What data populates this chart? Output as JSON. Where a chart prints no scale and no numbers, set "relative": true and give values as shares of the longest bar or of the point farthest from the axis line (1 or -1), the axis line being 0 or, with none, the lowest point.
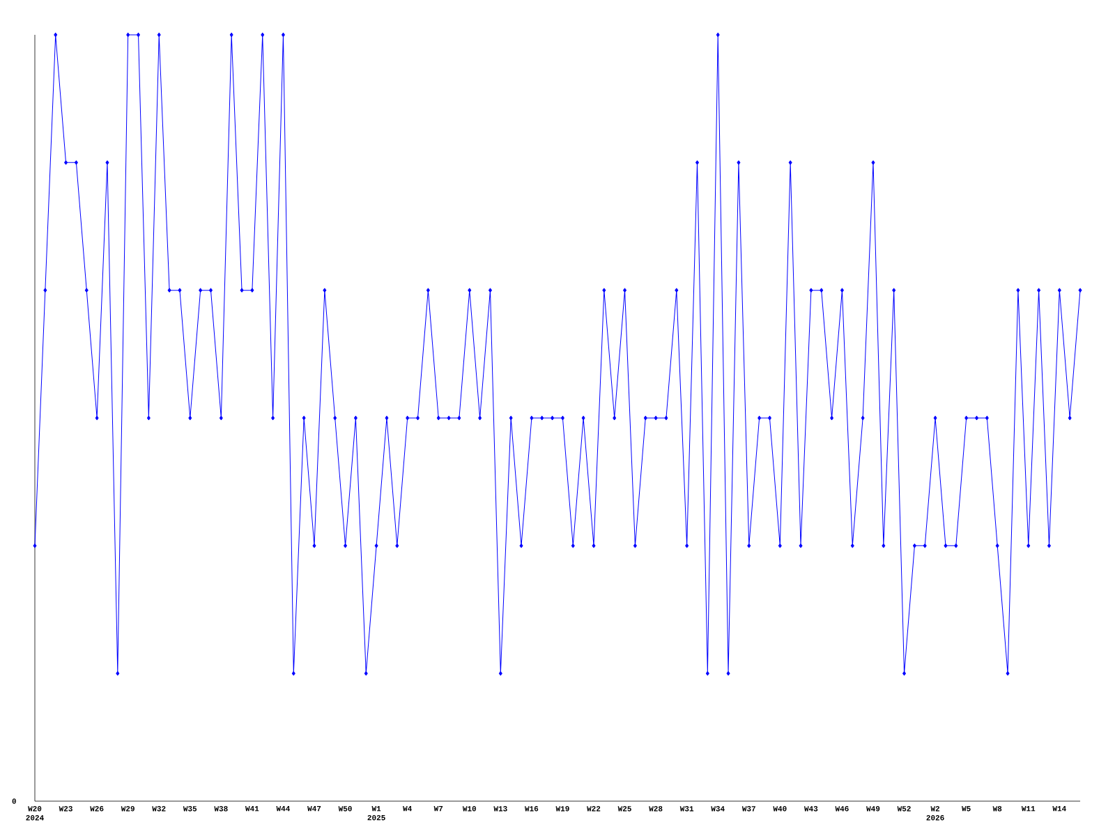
{
  "chart_data": {
    "type": "line",
    "relative": true,
    "color": "#0000ff",
    "marker": "diamond",
    "line_style": "solid",
    "grid": false,
    "categories": [
      "W20 2024",
      null,
      null,
      "W23",
      null,
      null,
      "W26",
      null,
      null,
      "W29",
      null,
      null,
      "W32",
      null,
      null,
      "W35",
      null,
      null,
      "W38",
      null,
      null,
      "W41",
      null,
      null,
      "W44",
      null,
      null,
      "W47",
      null,
      null,
      "W50",
      null,
      null,
      "W1 2025",
      null,
      null,
      "W4",
      null,
      null,
      "W7",
      null,
      null,
      "W10",
      null,
      null,
      "W13",
      null,
      null,
      "W16",
      null,
      null,
      "W19",
      null,
      null,
      "W22",
      null,
      null,
      "W25",
      null,
      null,
      "W28",
      null,
      null,
      "W31",
      null,
      null,
      "W34",
      null,
      null,
      "W37",
      null,
      null,
      "W40",
      null,
      null,
      "W43",
      null,
      null,
      "W46",
      null,
      null,
      "W49",
      null,
      null,
      "W52",
      null,
      null,
      "W2 2026",
      null,
      null,
      "W5",
      null,
      null,
      "W8",
      null,
      null,
      "W11",
      null,
      null,
      "W14",
      null,
      null
    ],
    "values": [
      0.3333,
      0.6667,
      1,
      0.8333,
      0.8333,
      0.6667,
      0.5,
      0.8333,
      0.1667,
      1,
      1,
      0.5,
      1,
      0.6667,
      0.6667,
      0.5,
      0.6667,
      0.6667,
      0.5,
      1,
      0.6667,
      0.6667,
      1,
      0.5,
      1,
      0.1667,
      0.5,
      0.3333,
      0.6667,
      0.5,
      0.3333,
      0.5,
      0.1667,
      0.3333,
      0.5,
      0.3333,
      0.5,
      0.5,
      0.6667,
      0.5,
      0.5,
      0.5,
      0.6667,
      0.5,
      0.6667,
      0.1667,
      0.5,
      0.3333,
      0.5,
      0.5,
      0.5,
      0.5,
      0.3333,
      0.5,
      0.3333,
      0.6667,
      0.5,
      0.6667,
      0.3333,
      0.5,
      0.5,
      0.5,
      0.6667,
      0.3333,
      0.8333,
      0.1667,
      1,
      0.1667,
      0.8333,
      0.3333,
      0.5,
      0.5,
      0.3333,
      0.8333,
      0.3333,
      0.6667,
      0.6667,
      0.5,
      0.6667,
      0.3333,
      0.5,
      0.8333,
      0.3333,
      0.6667,
      0.1667,
      0.3333,
      0.3333,
      0.5,
      0.3333,
      0.3333,
      0.5,
      0.5,
      0.5,
      0.3333,
      0.1667,
      0.6667,
      0.3333,
      0.6667,
      0.3333,
      0.6667,
      0.5,
      0.6667
    ],
    "annotations": [
      "0"
    ]
  }
}
